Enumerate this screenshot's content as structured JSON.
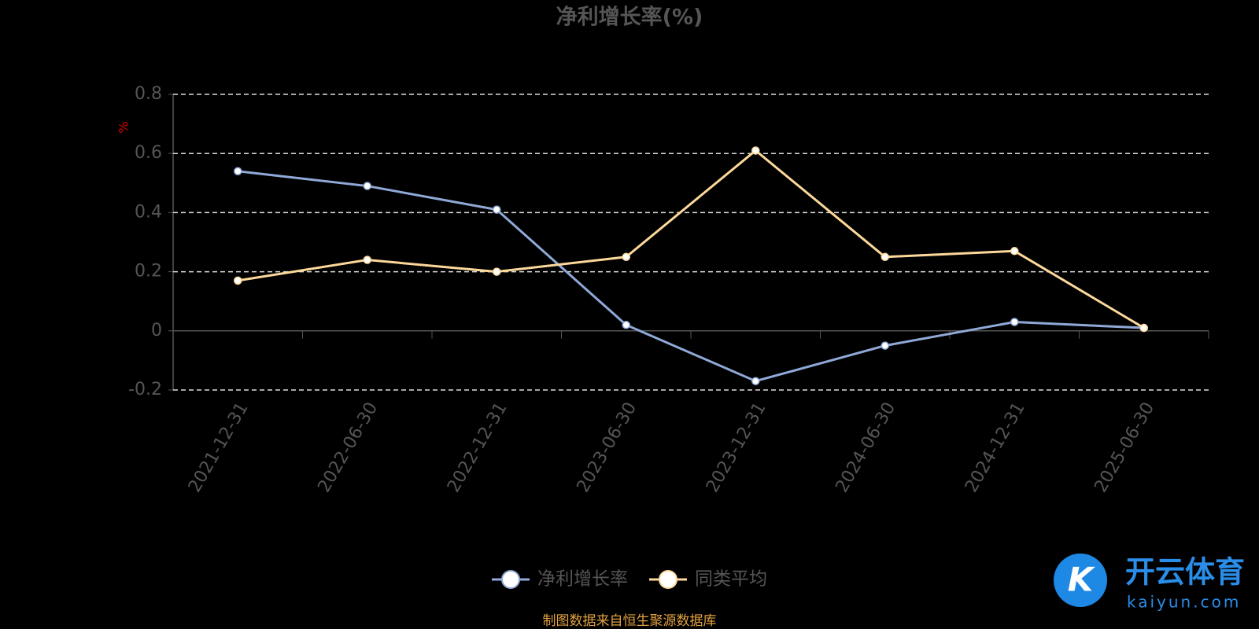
{
  "chart_data": {
    "type": "line",
    "title": "净利增长率(%)",
    "y_label": "%",
    "categories": [
      "2021-12-31",
      "2022-06-30",
      "2022-12-31",
      "2023-06-30",
      "2023-12-31",
      "2024-06-30",
      "2024-12-31",
      "2025-06-30"
    ],
    "series": [
      {
        "name": "净利增长率",
        "color": "#8fa9d8",
        "values": [
          0.54,
          0.49,
          0.41,
          0.02,
          -0.17,
          -0.05,
          0.03,
          0.01
        ]
      },
      {
        "name": "同类平均",
        "color": "#fcd89a",
        "values": [
          0.17,
          0.24,
          0.2,
          0.25,
          0.61,
          0.25,
          0.27,
          0.01
        ]
      }
    ],
    "ylim": [
      -0.2,
      0.8
    ],
    "yticks": [
      -0.2,
      0,
      0.2,
      0.4,
      0.6,
      0.8
    ],
    "grid": true,
    "legend": "bottom",
    "source": "制图数据来自恒生聚源数据库",
    "watermark": {
      "brand": "开云体育",
      "site": "kaiyun.com"
    }
  }
}
